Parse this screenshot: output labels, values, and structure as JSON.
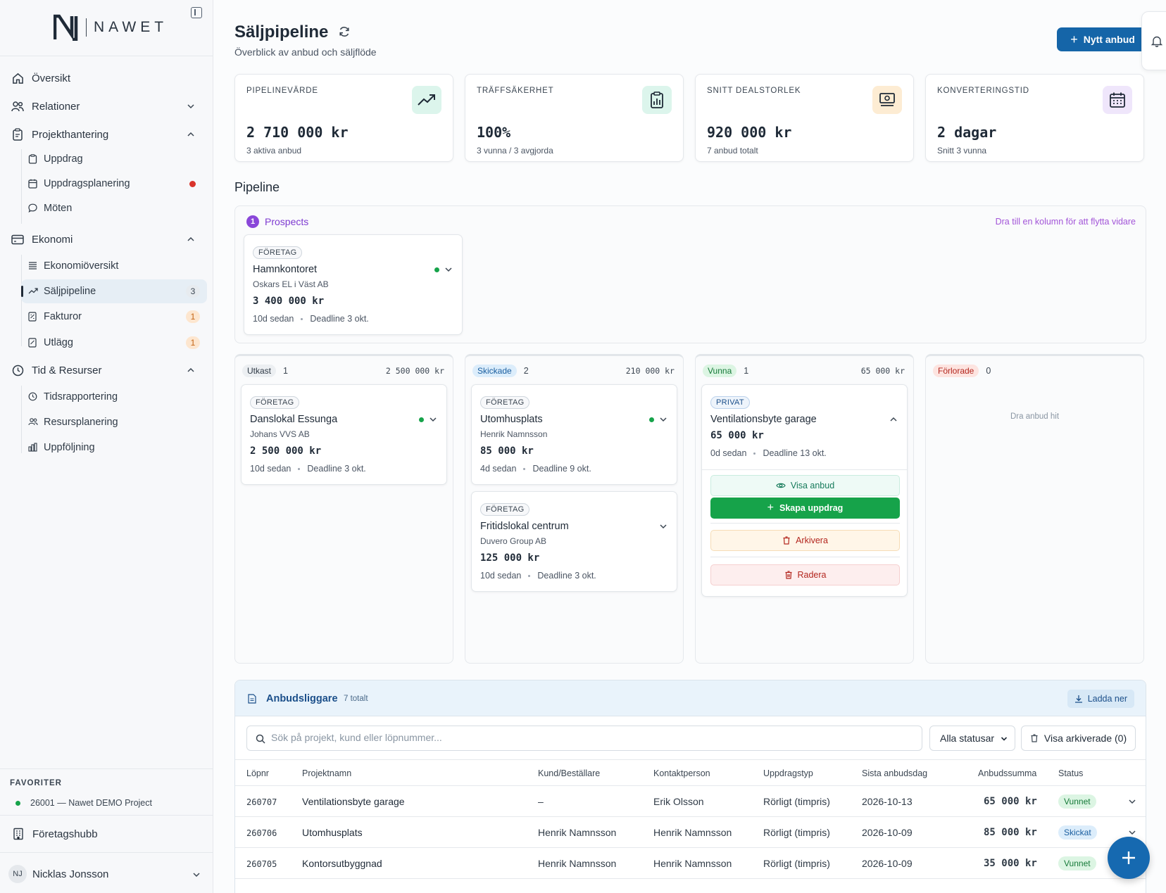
{
  "app": {
    "logo_text": "NAWET"
  },
  "sidebar": {
    "nav": {
      "oversikt": "Översikt",
      "relationer": "Relationer",
      "projekthantering": "Projekthantering",
      "uppdrag": "Uppdrag",
      "uppdragsplanering": "Uppdragsplanering",
      "moten": "Möten",
      "ekonomi": "Ekonomi",
      "ekonomioversikt": "Ekonomiöversikt",
      "saljpipeline": "Säljpipeline",
      "saljpipeline_badge": "3",
      "fakturor": "Fakturor",
      "fakturor_badge": "1",
      "utlagg": "Utlägg",
      "utlagg_badge": "1",
      "tid_resurser": "Tid & Resurser",
      "tidsrapportering": "Tidsrapportering",
      "resursplanering": "Resursplanering",
      "uppfoljning": "Uppföljning"
    },
    "favorites_title": "FAVORITER",
    "favorite_item": "26001 — Nawet DEMO Project",
    "company_hub": "Företagshubb",
    "user": {
      "initials": "NJ",
      "name": "Nicklas Jonsson"
    }
  },
  "header": {
    "title": "Säljpipeline",
    "subtitle": "Överblick av anbud och säljflöde",
    "new_button": "Nytt anbud"
  },
  "kpis": [
    {
      "label": "PIPELINEVÄRDE",
      "value": "2 710 000 kr",
      "sub": "3 aktiva anbud",
      "icon": "trending-up-icon",
      "color": "#dcf5ec"
    },
    {
      "label": "TRÄFFSÄKERHET",
      "value": "100%",
      "sub": "3 vunna / 3 avgjorda",
      "icon": "clipboard-chart-icon",
      "color": "#dcf5ec"
    },
    {
      "label": "SNITT DEALSTORLEK",
      "value": "920 000 kr",
      "sub": "7 anbud totalt",
      "icon": "money-icon",
      "color": "#fdecd3"
    },
    {
      "label": "KONVERTERINGSTID",
      "value": "2 dagar",
      "sub": "Snitt 3 vunna",
      "icon": "calendar-icon",
      "color": "#efe6fb"
    }
  ],
  "pipeline": {
    "title": "Pipeline",
    "prospects": {
      "count": "1",
      "label": "Prospects",
      "hint": "Dra till en kolumn för att flytta vidare",
      "card": {
        "tag": "FÖRETAG",
        "title": "Hamnkontoret",
        "client": "Oskars EL i Väst AB",
        "amount": "3 400 000 kr",
        "age": "10d sedan",
        "deadline": "Deadline 3 okt."
      }
    },
    "columns": [
      {
        "label": "Utkast",
        "count": "1",
        "sum": "2 500 000 kr",
        "cards": [
          {
            "tag": "FÖRETAG",
            "title": "Danslokal Essunga",
            "client": "Johans VVS AB",
            "amount": "2 500 000 kr",
            "age": "10d sedan",
            "deadline": "Deadline 3 okt."
          }
        ]
      },
      {
        "label": "Skickade",
        "count": "2",
        "sum": "210 000 kr",
        "cards": [
          {
            "tag": "FÖRETAG",
            "title": "Utomhusplats",
            "client": "Henrik Namnsson",
            "amount": "85 000 kr",
            "age": "4d sedan",
            "deadline": "Deadline 9 okt."
          },
          {
            "tag": "FÖRETAG",
            "title": "Fritidslokal centrum",
            "client": "Duvero Group AB",
            "amount": "125 000 kr",
            "age": "10d sedan",
            "deadline": "Deadline 3 okt."
          }
        ]
      },
      {
        "label": "Vunna",
        "count": "1",
        "sum": "65 000 kr",
        "cards": [
          {
            "tag": "PRIVAT",
            "title": "Ventilationsbyte garage",
            "amount": "65 000 kr",
            "age": "0d sedan",
            "deadline": "Deadline 13 okt.",
            "actions": {
              "view": "Visa anbud",
              "create": "Skapa uppdrag",
              "archive": "Arkivera",
              "delete": "Radera"
            }
          }
        ]
      },
      {
        "label": "Förlorade",
        "count": "0",
        "drop_hint": "Dra anbud hit"
      }
    ]
  },
  "register": {
    "title": "Anbudsliggare",
    "count": "7 totalt",
    "download": "Ladda ner",
    "search_placeholder": "Sök på projekt, kund eller löpnummer...",
    "status_filter": "Alla statusar",
    "show_archived": "Visa arkiverade (0)",
    "columns": [
      "Löpnr",
      "Projektnamn",
      "Kund/Beställare",
      "Kontaktperson",
      "Uppdragstyp",
      "Sista anbudsdag",
      "Anbudssumma",
      "Status"
    ],
    "rows": [
      {
        "nr": "260707",
        "name": "Ventilationsbyte garage",
        "client": "–",
        "contact": "Erik Olsson",
        "type": "Rörligt (timpris)",
        "date": "2026-10-13",
        "sum": "65 000 kr",
        "status": "Vunnet"
      },
      {
        "nr": "260706",
        "name": "Utomhusplats",
        "client": "Henrik Namnsson",
        "contact": "Henrik Namnsson",
        "type": "Rörligt (timpris)",
        "date": "2026-10-09",
        "sum": "85 000 kr",
        "status": "Skickat"
      },
      {
        "nr": "260705",
        "name": "Kontorsutbyggnad",
        "client": "Henrik Namnsson",
        "contact": "Henrik Namnsson",
        "type": "Rörligt (timpris)",
        "date": "2026-10-09",
        "sum": "35 000 kr",
        "status": "Vunnet"
      }
    ]
  }
}
